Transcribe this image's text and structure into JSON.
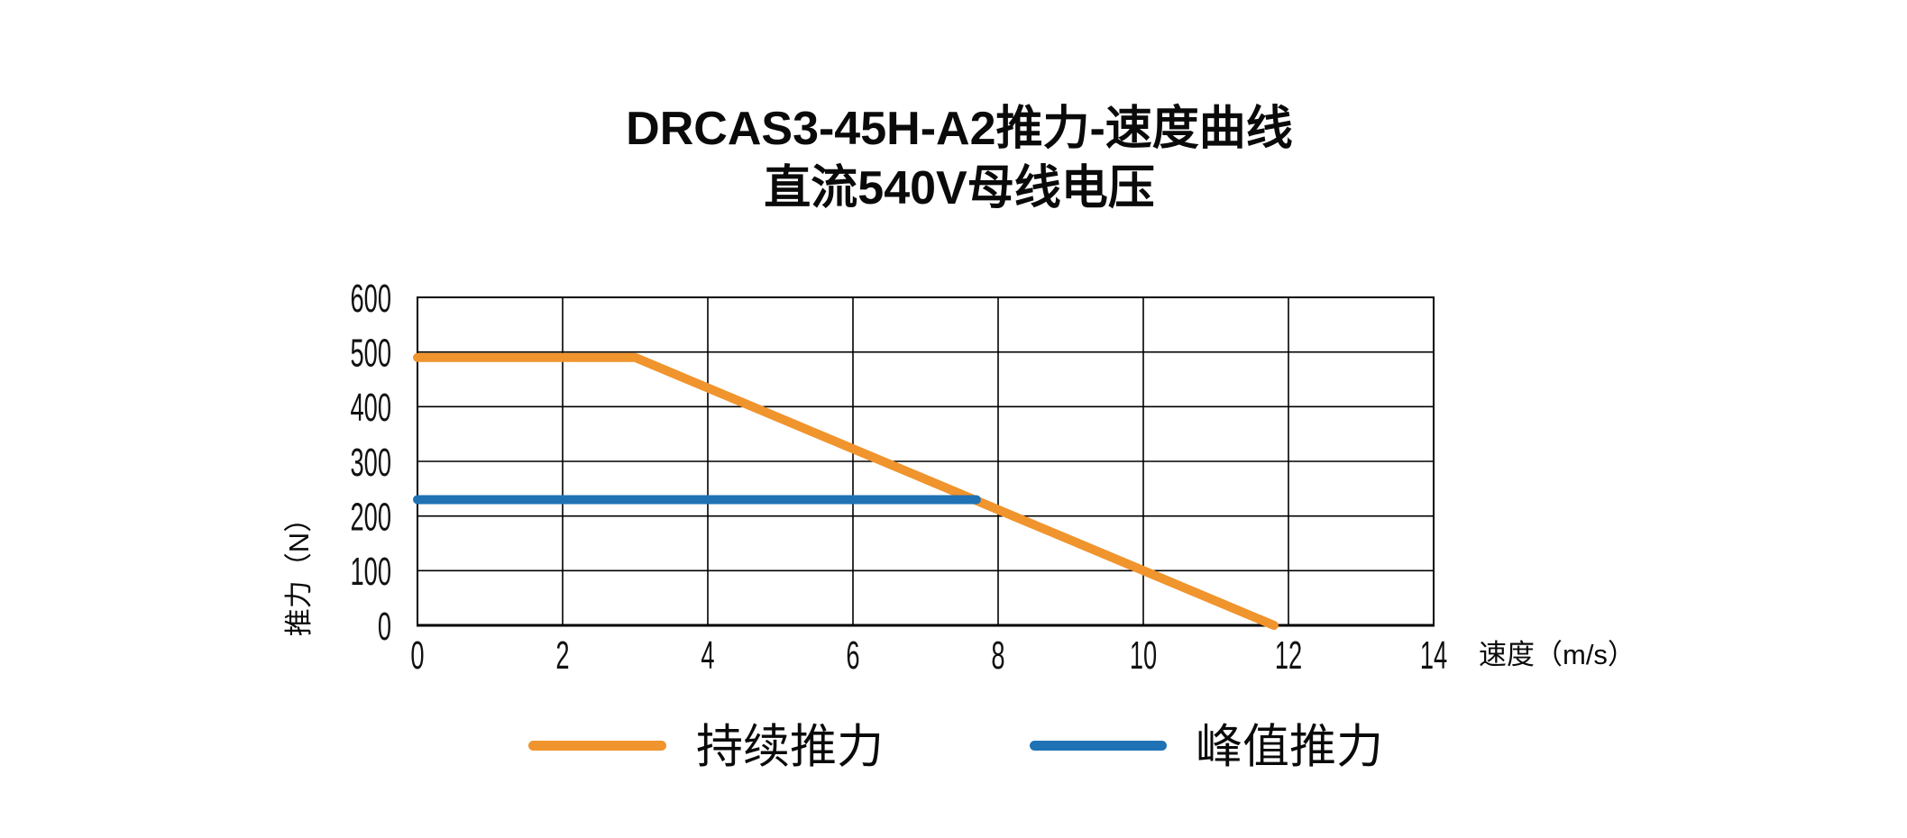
{
  "title": {
    "line1": "DRCAS3-45H-A2推力-速度曲线",
    "line2": "直流540V母线电压"
  },
  "chart_data": {
    "type": "line",
    "title": "DRCAS3-45H-A2推力-速度曲线 直流540V母线电压",
    "xlabel": "速度（m/s）",
    "ylabel": "推力（N）",
    "xlim": [
      0,
      14
    ],
    "ylim": [
      0,
      600
    ],
    "x_ticks": [
      0,
      2,
      4,
      6,
      8,
      10,
      12,
      14
    ],
    "y_ticks": [
      0,
      100,
      200,
      300,
      400,
      500,
      600
    ],
    "grid": true,
    "grid_color": "#000000",
    "tick_color": "#111111",
    "legend_position": "bottom",
    "series": [
      {
        "name": "持续推力",
        "id": "continuous-thrust",
        "color": "#F0942D",
        "points": [
          [
            0,
            490
          ],
          [
            3,
            490
          ],
          [
            11.8,
            0
          ]
        ]
      },
      {
        "name": "峰值推力",
        "id": "peak-thrust",
        "color": "#1F72B4",
        "points": [
          [
            0,
            230
          ],
          [
            7.7,
            230
          ]
        ]
      }
    ]
  }
}
